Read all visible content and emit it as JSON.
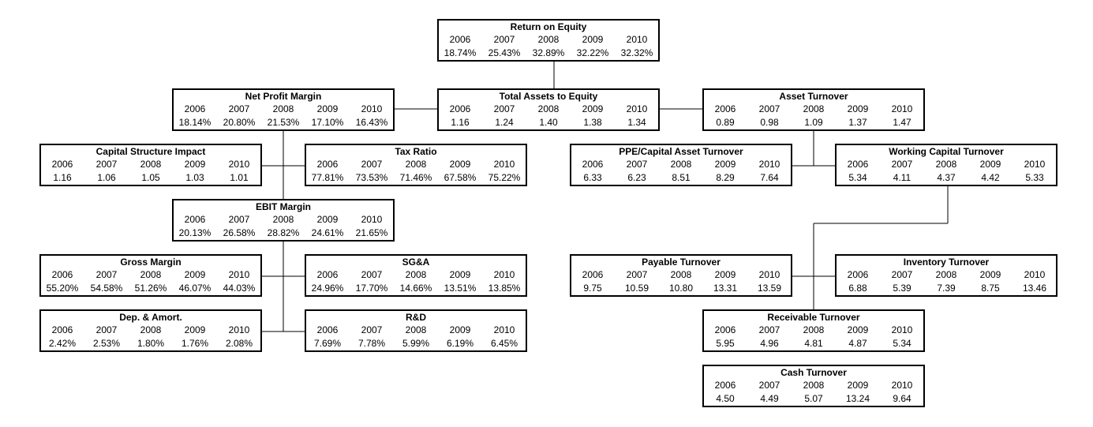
{
  "nodes": [
    {
      "title": "Return on Equity",
      "years": [
        "2006",
        "2007",
        "2008",
        "2009",
        "2010"
      ],
      "values": [
        "18.74%",
        "25.43%",
        "32.89%",
        "32.22%",
        "32.32%"
      ]
    },
    {
      "title": "Net Profit Margin",
      "years": [
        "2006",
        "2007",
        "2008",
        "2009",
        "2010"
      ],
      "values": [
        "18.14%",
        "20.80%",
        "21.53%",
        "17.10%",
        "16.43%"
      ]
    },
    {
      "title": "Total Assets to Equity",
      "years": [
        "2006",
        "2007",
        "2008",
        "2009",
        "2010"
      ],
      "values": [
        "1.16",
        "1.24",
        "1.40",
        "1.38",
        "1.34"
      ]
    },
    {
      "title": "Asset Turnover",
      "years": [
        "2006",
        "2007",
        "2008",
        "2009",
        "2010"
      ],
      "values": [
        "0.89",
        "0.98",
        "1.09",
        "1.37",
        "1.47"
      ]
    },
    {
      "title": "Capital Structure Impact",
      "years": [
        "2006",
        "2007",
        "2008",
        "2009",
        "2010"
      ],
      "values": [
        "1.16",
        "1.06",
        "1.05",
        "1.03",
        "1.01"
      ]
    },
    {
      "title": "Tax Ratio",
      "years": [
        "2006",
        "2007",
        "2008",
        "2009",
        "2010"
      ],
      "values": [
        "77.81%",
        "73.53%",
        "71.46%",
        "67.58%",
        "75.22%"
      ]
    },
    {
      "title": "PPE/Capital Asset Turnover",
      "years": [
        "2006",
        "2007",
        "2008",
        "2009",
        "2010"
      ],
      "values": [
        "6.33",
        "6.23",
        "8.51",
        "8.29",
        "7.64"
      ]
    },
    {
      "title": "Working Capital Turnover",
      "years": [
        "2006",
        "2007",
        "2008",
        "2009",
        "2010"
      ],
      "values": [
        "5.34",
        "4.11",
        "4.37",
        "4.42",
        "5.33"
      ]
    },
    {
      "title": "EBIT Margin",
      "years": [
        "2006",
        "2007",
        "2008",
        "2009",
        "2010"
      ],
      "values": [
        "20.13%",
        "26.58%",
        "28.82%",
        "24.61%",
        "21.65%"
      ]
    },
    {
      "title": "Gross Margin",
      "years": [
        "2006",
        "2007",
        "2008",
        "2009",
        "2010"
      ],
      "values": [
        "55.20%",
        "54.58%",
        "51.26%",
        "46.07%",
        "44.03%"
      ]
    },
    {
      "title": "SG&A",
      "years": [
        "2006",
        "2007",
        "2008",
        "2009",
        "2010"
      ],
      "values": [
        "24.96%",
        "17.70%",
        "14.66%",
        "13.51%",
        "13.85%"
      ]
    },
    {
      "title": "Payable Turnover",
      "years": [
        "2006",
        "2007",
        "2008",
        "2009",
        "2010"
      ],
      "values": [
        "9.75",
        "10.59",
        "10.80",
        "13.31",
        "13.59"
      ]
    },
    {
      "title": "Inventory Turnover",
      "years": [
        "2006",
        "2007",
        "2008",
        "2009",
        "2010"
      ],
      "values": [
        "6.88",
        "5.39",
        "7.39",
        "8.75",
        "13.46"
      ]
    },
    {
      "title": "Dep. & Amort.",
      "years": [
        "2006",
        "2007",
        "2008",
        "2009",
        "2010"
      ],
      "values": [
        "2.42%",
        "2.53%",
        "1.80%",
        "1.76%",
        "2.08%"
      ]
    },
    {
      "title": "R&D",
      "years": [
        "2006",
        "2007",
        "2008",
        "2009",
        "2010"
      ],
      "values": [
        "7.69%",
        "7.78%",
        "5.99%",
        "6.19%",
        "6.45%"
      ]
    },
    {
      "title": "Receivable Turnover",
      "years": [
        "2006",
        "2007",
        "2008",
        "2009",
        "2010"
      ],
      "values": [
        "5.95",
        "4.96",
        "4.81",
        "4.87",
        "5.34"
      ]
    },
    {
      "title": "Cash Turnover",
      "years": [
        "2006",
        "2007",
        "2008",
        "2009",
        "2010"
      ],
      "values": [
        "4.50",
        "4.49",
        "5.07",
        "13.24",
        "9.64"
      ]
    }
  ]
}
